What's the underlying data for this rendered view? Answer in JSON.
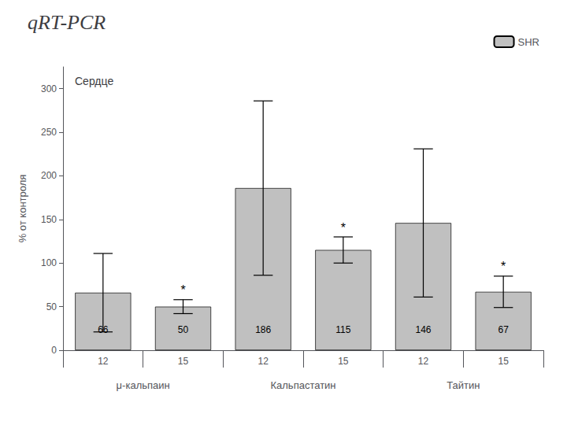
{
  "chart_data": {
    "type": "bar",
    "title": "qRT-PCR",
    "subtitle": "Сердце",
    "ylabel": "% от контроля",
    "categories": [
      "12",
      "15",
      "12",
      "15",
      "12",
      "15"
    ],
    "group_labels": [
      "μ-кальпаин",
      "Кальпастатин",
      "Тайтин"
    ],
    "series": [
      {
        "name": "SHR",
        "color": "#c0c0c0",
        "values": [
          66,
          50,
          186,
          115,
          146,
          67
        ],
        "errors": [
          45,
          8,
          100,
          15,
          85,
          18
        ],
        "sig_labels": [
          null,
          "*",
          null,
          "*",
          null,
          "*"
        ]
      }
    ],
    "ylim": [
      0,
      325
    ],
    "yticks": [
      0,
      50,
      100,
      150,
      200,
      250,
      300
    ],
    "grid": false,
    "legend": "upper right",
    "data_labels": true
  }
}
